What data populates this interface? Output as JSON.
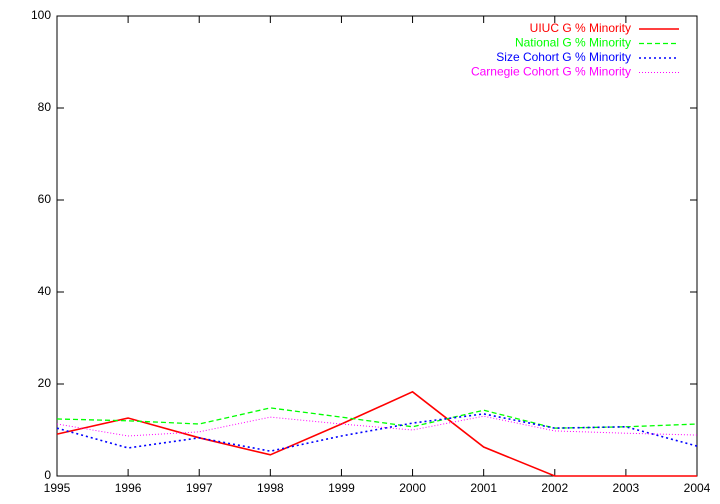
{
  "chart_data": {
    "type": "line",
    "x": [
      1995,
      1996,
      1997,
      1998,
      1999,
      2000,
      2001,
      2002,
      2003,
      2004
    ],
    "xlim": [
      1995,
      2004
    ],
    "xticks": [
      1995,
      1996,
      1997,
      1998,
      1999,
      2000,
      2001,
      2002,
      2003,
      2004
    ],
    "ylim": [
      0,
      100
    ],
    "yticks": [
      0,
      20,
      40,
      60,
      80,
      100
    ],
    "legend": "top-right",
    "series": [
      {
        "name": "UIUC G % Minority",
        "color": "#ff0000",
        "line_style": "solid",
        "values": [
          9.1,
          12.6,
          8.3,
          4.6,
          11.3,
          18.3,
          6.3,
          0,
          0,
          0
        ]
      },
      {
        "name": "National G % Minority",
        "color": "#00ff00",
        "line_style": "dashed",
        "values": [
          12.4,
          12.0,
          11.3,
          14.8,
          12.8,
          10.7,
          14.3,
          10.4,
          10.7,
          11.3
        ]
      },
      {
        "name": "Size Cohort G % Minority",
        "color": "#0000ff",
        "line_style": "dotted",
        "values": [
          10.4,
          6.1,
          8.3,
          5.4,
          8.7,
          11.5,
          13.5,
          10.4,
          10.7,
          6.5
        ]
      },
      {
        "name": "Carnegie Cohort G % Minority",
        "color": "#ff00ff",
        "line_style": "fine-dotted",
        "values": [
          11.3,
          8.7,
          9.6,
          12.8,
          11.3,
          10.0,
          13.0,
          9.8,
          9.3,
          8.9
        ]
      }
    ]
  }
}
